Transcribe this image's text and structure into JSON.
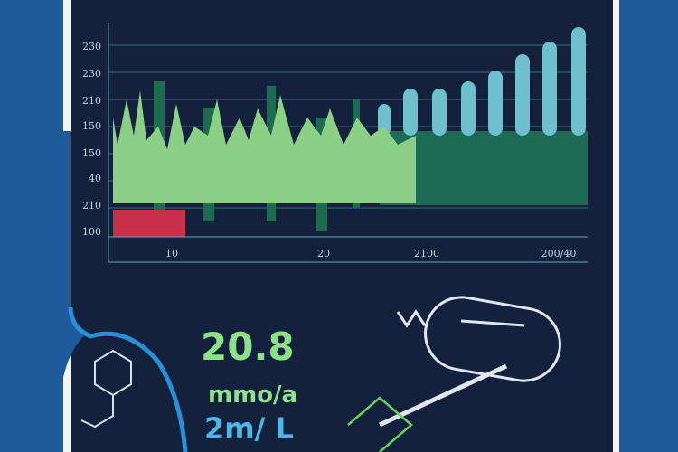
{
  "chart": {
    "y_labels": [
      "230",
      "230",
      "210",
      "150",
      "150",
      "40",
      "210",
      "100"
    ],
    "x_labels": [
      "10",
      "20",
      "2100",
      "200/40"
    ]
  },
  "readout": {
    "value": "20.8",
    "unit": "mmo/a",
    "secondary": "2m/ L"
  }
}
